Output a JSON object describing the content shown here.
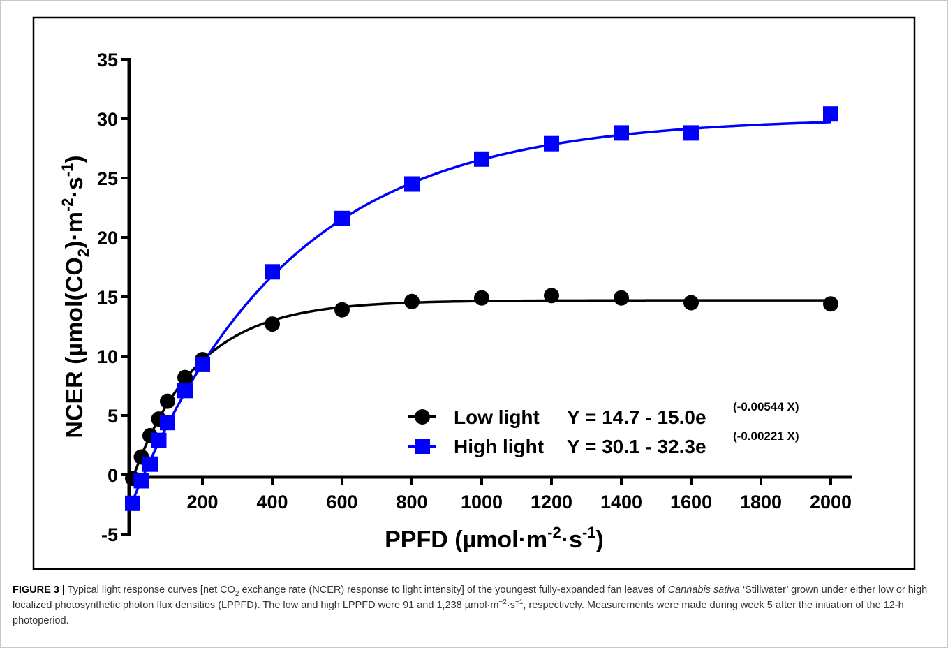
{
  "chart_data": {
    "type": "line",
    "x_label": [
      "PPFD  (µmol·m",
      "-2",
      "·s",
      "-1",
      ")"
    ],
    "y_label": [
      "NCER  (µmol(CO",
      "2",
      ")·m",
      "-2",
      "·s",
      "-1",
      ")"
    ],
    "x": [
      0,
      25,
      50,
      75,
      100,
      150,
      200,
      400,
      600,
      800,
      1000,
      1200,
      1400,
      1600,
      2000
    ],
    "series": [
      {
        "name": "Low light",
        "color": "#000000",
        "marker": "circle",
        "values": [
          -0.3,
          1.5,
          3.3,
          4.7,
          6.2,
          8.2,
          9.7,
          12.7,
          13.9,
          14.6,
          14.9,
          15.1,
          14.9,
          14.5,
          14.4
        ],
        "fit": {
          "a": 14.7,
          "b": 15.0,
          "k": -0.00544
        },
        "equation": "Y = 14.7 - 15.0e",
        "equation_exponent": "(-0.00544 X)"
      },
      {
        "name": "High light",
        "color": "#0000ff",
        "marker": "square",
        "values": [
          -2.4,
          -0.5,
          0.9,
          2.9,
          4.4,
          7.1,
          9.3,
          17.1,
          21.6,
          24.5,
          26.6,
          27.9,
          28.8,
          28.8,
          30.4
        ],
        "fit": {
          "a": 30.1,
          "b": 32.3,
          "k": -0.00221
        },
        "equation": "Y = 30.1 - 32.3e",
        "equation_exponent": "(-0.00221 X)"
      }
    ],
    "xlim": [
      0,
      2000
    ],
    "xticks": [
      200,
      400,
      600,
      800,
      1000,
      1200,
      1400,
      1600,
      1800,
      2000
    ],
    "ylim": [
      -5,
      35
    ],
    "yticks": [
      -5,
      0,
      5,
      10,
      15,
      20,
      25,
      30,
      35
    ],
    "grid": false,
    "legend": "lower right"
  },
  "caption": {
    "label": "FIGURE 3 |",
    "parts": [
      " Typical light response curves [net CO",
      "2",
      " exchange rate (NCER) response to light intensity] of the youngest fully-expanded fan leaves of ",
      "Cannabis sativa",
      " ‘Stillwater’ grown under either low or high localized photosynthetic photon flux densities (LPPFD). The low and high LPPFD were 91 and 1,238 µmol·m",
      "−2",
      "·s",
      "−1",
      ", respectively. Measurements were made during week 5 after the initiation of the 12-h photoperiod."
    ]
  }
}
